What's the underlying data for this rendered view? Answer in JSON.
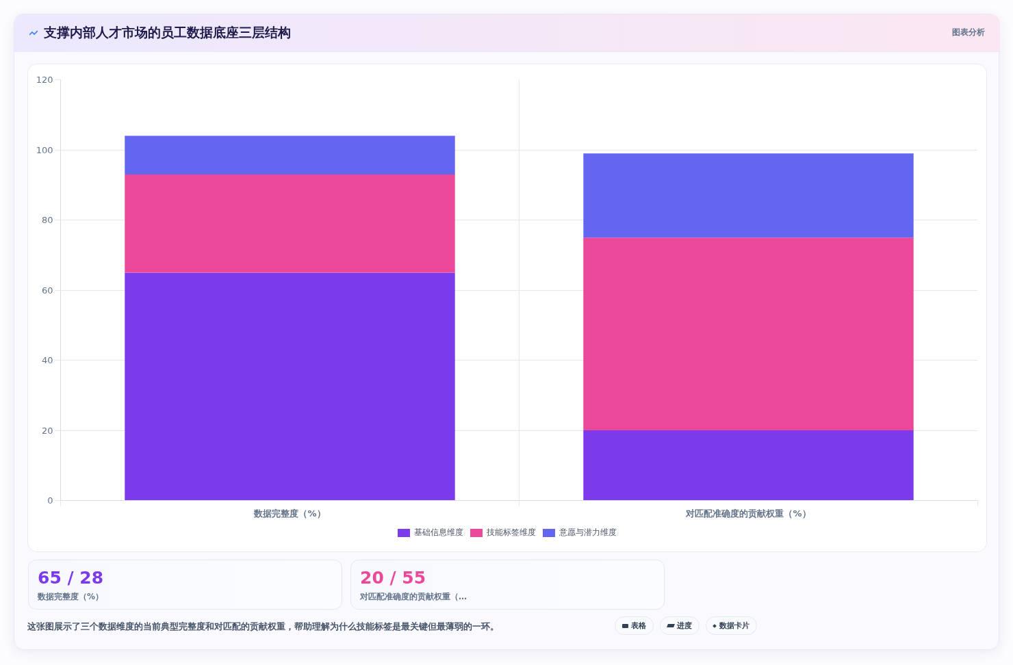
{
  "chart_data": {
    "type": "bar",
    "title": "支撑内部人才市场的员工数据底座三层结构",
    "categories": [
      "数据完整度（%）",
      "对匹配准确度的贡献权重（%）"
    ],
    "series": [
      {
        "name": "基础信息维度",
        "color": "#7c3aed",
        "values": [
          65,
          20
        ]
      },
      {
        "name": "技能标签维度",
        "color": "#ec4899",
        "values": [
          28,
          55
        ]
      },
      {
        "name": "意愿与潜力维度",
        "color": "#6366f1",
        "values": [
          11,
          24
        ]
      }
    ],
    "stacked": true,
    "ylim": [
      0,
      120
    ],
    "yticks": [
      0,
      20,
      40,
      60,
      80,
      100,
      120
    ],
    "grid": true,
    "legend": "bottom",
    "annotations": [
      "图表分析",
      "65 / 28",
      "数据完整度（%）",
      "20 / 55",
      "对匹配准确度的贡献权重（…",
      "这张图展示了三个数据维度的当前典型完整度和对匹配的贡献权重，帮助理解为什么技能标签是最关键但最薄弱的一环。",
      "表格",
      "进度",
      "数据卡片"
    ]
  }
}
